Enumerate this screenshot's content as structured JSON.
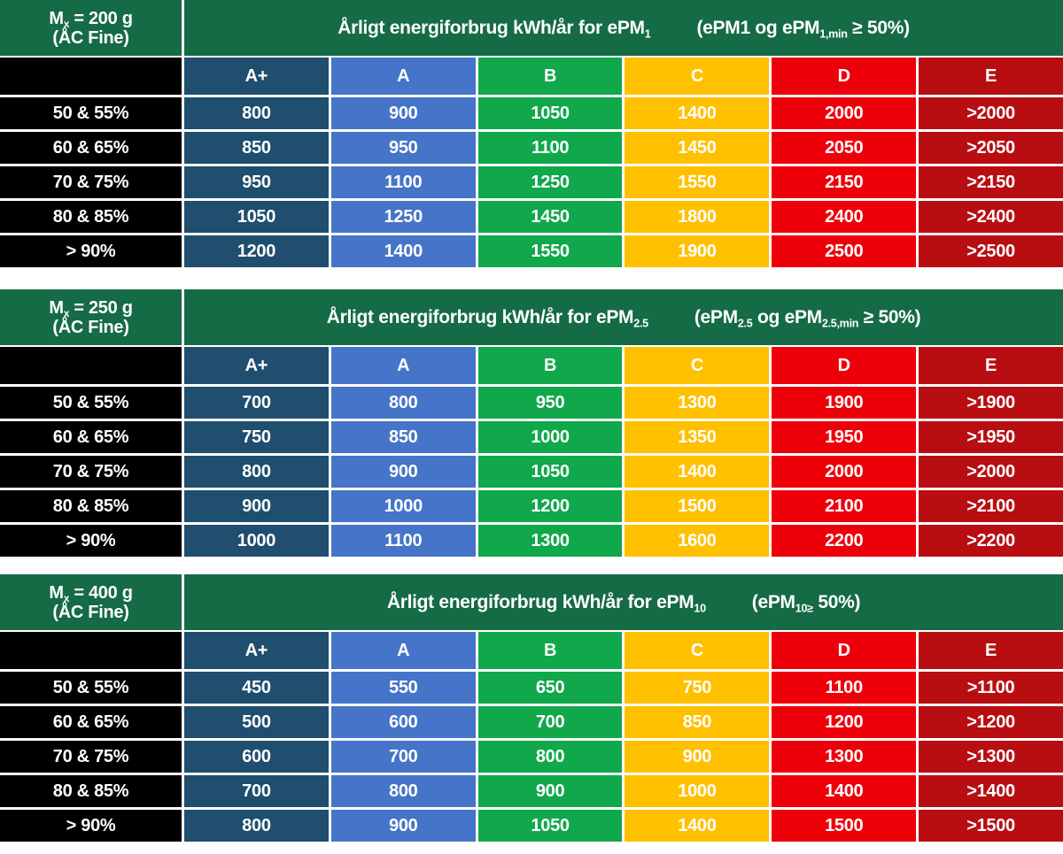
{
  "colors": {
    "header_green": "#156B45",
    "black": "#000000",
    "white": "#FFFFFF",
    "class_colors": [
      "#1F4E6E",
      "#4674C8",
      "#10A84B",
      "#FFC000",
      "#EE000B",
      "#B80E12"
    ]
  },
  "classes": [
    "A+",
    "A",
    "B",
    "C",
    "D",
    "E"
  ],
  "tables": [
    {
      "name": "epm1",
      "mx_line1": [
        {
          "t": "M"
        },
        {
          "t": "x",
          "sub": true
        },
        {
          "t": " = 200 g"
        }
      ],
      "mx_line2": "(ÅC Fine)",
      "title_main": [
        {
          "t": "Årligt energiforbrug kWh/år for ePM"
        },
        {
          "t": "1",
          "sub": true
        }
      ],
      "title_paren": [
        {
          "t": "(ePM1 og ePM"
        },
        {
          "t": "1,min",
          "sub": true
        },
        {
          "t": " ≥ 50%)"
        }
      ],
      "rows": [
        {
          "label": "50 & 55%",
          "values": [
            "800",
            "900",
            "1050",
            "1400",
            "2000",
            ">2000"
          ]
        },
        {
          "label": "60 & 65%",
          "values": [
            "850",
            "950",
            "1100",
            "1450",
            "2050",
            ">2050"
          ]
        },
        {
          "label": "70 & 75%",
          "values": [
            "950",
            "1100",
            "1250",
            "1550",
            "2150",
            ">2150"
          ]
        },
        {
          "label": "80 & 85%",
          "values": [
            "1050",
            "1250",
            "1450",
            "1800",
            "2400",
            ">2400"
          ]
        },
        {
          "label": "> 90%",
          "values": [
            "1200",
            "1400",
            "1550",
            "1900",
            "2500",
            ">2500"
          ]
        }
      ]
    },
    {
      "name": "epm2-5",
      "mx_line1": [
        {
          "t": "M"
        },
        {
          "t": "x",
          "sub": true
        },
        {
          "t": " = 250 g"
        }
      ],
      "mx_line2": "(ÅC Fine)",
      "title_main": [
        {
          "t": "Årligt energiforbrug kWh/år for ePM"
        },
        {
          "t": "2.5",
          "sub": true
        }
      ],
      "title_paren": [
        {
          "t": "(ePM"
        },
        {
          "t": "2.5",
          "sub": true
        },
        {
          "t": " og ePM"
        },
        {
          "t": "2.5,min",
          "sub": true
        },
        {
          "t": " ≥ 50%)"
        }
      ],
      "rows": [
        {
          "label": "50 & 55%",
          "values": [
            "700",
            "800",
            "950",
            "1300",
            "1900",
            ">1900"
          ]
        },
        {
          "label": "60 & 65%",
          "values": [
            "750",
            "850",
            "1000",
            "1350",
            "1950",
            ">1950"
          ]
        },
        {
          "label": "70 & 75%",
          "values": [
            "800",
            "900",
            "1050",
            "1400",
            "2000",
            ">2000"
          ]
        },
        {
          "label": "80 & 85%",
          "values": [
            "900",
            "1000",
            "1200",
            "1500",
            "2100",
            ">2100"
          ]
        },
        {
          "label": "> 90%",
          "values": [
            "1000",
            "1100",
            "1300",
            "1600",
            "2200",
            ">2200"
          ]
        }
      ]
    },
    {
      "name": "epm10",
      "mx_line1": [
        {
          "t": "M"
        },
        {
          "t": "x",
          "sub": true
        },
        {
          "t": " = 400 g"
        }
      ],
      "mx_line2": "(ÅC Fine)",
      "title_main": [
        {
          "t": "Årligt energiforbrug kWh/år for ePM"
        },
        {
          "t": "10",
          "sub": true
        }
      ],
      "title_paren": [
        {
          "t": "(ePM"
        },
        {
          "t": "10≥",
          "sub": true
        },
        {
          "t": " 50%)"
        }
      ],
      "rows": [
        {
          "label": "50 & 55%",
          "values": [
            "450",
            "550",
            "650",
            "750",
            "1100",
            ">1100"
          ]
        },
        {
          "label": "60 & 65%",
          "values": [
            "500",
            "600",
            "700",
            "850",
            "1200",
            ">1200"
          ]
        },
        {
          "label": "70 & 75%",
          "values": [
            "600",
            "700",
            "800",
            "900",
            "1300",
            ">1300"
          ]
        },
        {
          "label": "80 & 85%",
          "values": [
            "700",
            "800",
            "900",
            "1000",
            "1400",
            ">1400"
          ]
        },
        {
          "label": "> 90%",
          "values": [
            "800",
            "900",
            "1050",
            "1400",
            "1500",
            ">1500"
          ]
        }
      ]
    }
  ]
}
